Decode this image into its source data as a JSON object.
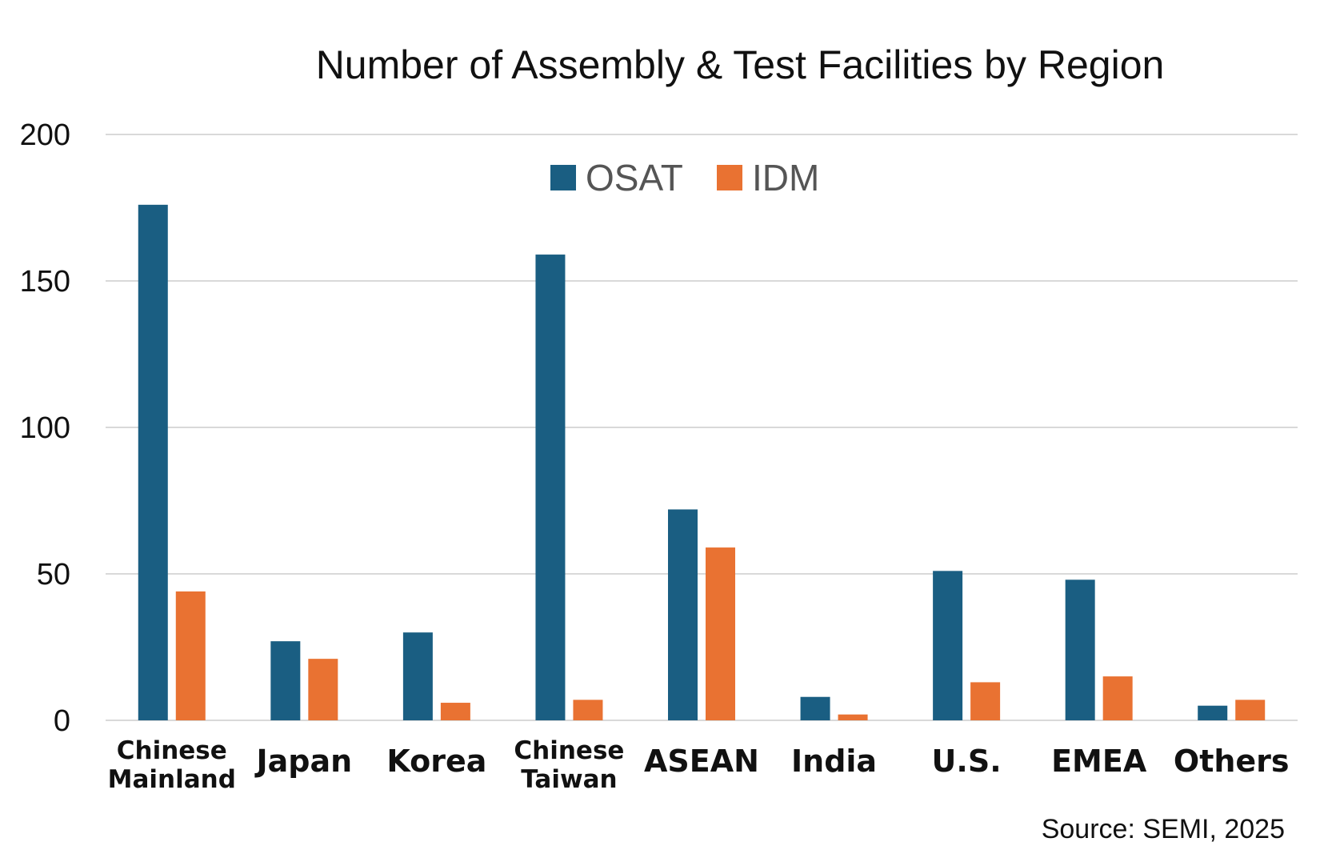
{
  "chart_data": {
    "type": "bar",
    "title": "Number of Assembly & Test Facilities by Region",
    "categories": [
      "Chinese Mainland",
      "Japan",
      "Korea",
      "Chinese Taiwan",
      "ASEAN",
      "India",
      "U.S.",
      "EMEA",
      "Others"
    ],
    "category_lines": [
      [
        "Chinese",
        "Mainland"
      ],
      [
        "Japan"
      ],
      [
        "Korea"
      ],
      [
        "Chinese",
        "Taiwan"
      ],
      [
        "ASEAN"
      ],
      [
        "India"
      ],
      [
        "U.S."
      ],
      [
        "EMEA"
      ],
      [
        "Others"
      ]
    ],
    "series": [
      {
        "name": "OSAT",
        "color": "#1a5e82",
        "values": [
          176,
          27,
          30,
          159,
          72,
          8,
          51,
          48,
          5
        ]
      },
      {
        "name": "IDM",
        "color": "#e97232",
        "values": [
          44,
          21,
          6,
          7,
          59,
          2,
          13,
          15,
          7
        ]
      }
    ],
    "y_ticks": [
      "0",
      "50",
      "100",
      "150",
      "200"
    ],
    "ylim": [
      0,
      200
    ],
    "grid": true,
    "legend_position": "top-center",
    "xlabel": "",
    "ylabel": "",
    "source": "Source: SEMI, 2025"
  }
}
